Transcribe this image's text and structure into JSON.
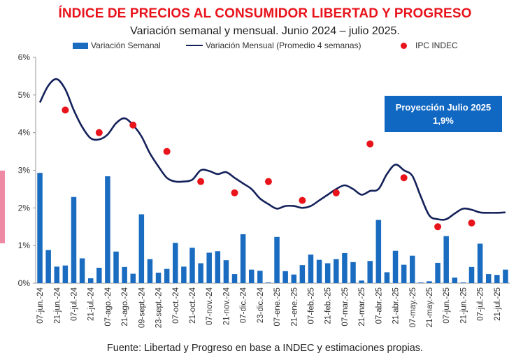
{
  "title": "ÍNDICE DE PRECIOS AL CONSUMIDOR LIBERTAD Y PROGRESO",
  "subtitle": "Variación semanal y mensual. Junio 2024 – julio 2025.",
  "source": "Fuente: Libertad y Progreso en base a INDEC y estimaciones propias.",
  "projection": {
    "line1": "Proyección Julio 2025",
    "line2": "1,9%"
  },
  "colors": {
    "bars": "#1a6cc0",
    "line": "#14215a",
    "ipc": "#e8131b",
    "title": "#e8131b",
    "axis": "#9a9a9a",
    "projection_box": "#1168c2",
    "side_tab": "#ef8aa5"
  },
  "chart_data": {
    "type": "bar+line+scatter",
    "title": "ÍNDICE DE PRECIOS AL CONSUMIDOR LIBERTAD Y PROGRESO",
    "subtitle": "Variación semanal y mensual. Junio 2024 – julio 2025.",
    "ylim": [
      0,
      6
    ],
    "y_ticks": [
      "0%",
      "1%",
      "2%",
      "3%",
      "4%",
      "5%",
      "6%"
    ],
    "y_tick_values": [
      0,
      1,
      2,
      3,
      4,
      5,
      6
    ],
    "grid": false,
    "legend_position": "top",
    "x_tick_labels": [
      "07-jun.-24",
      "21-jun.-24",
      "07-jul.-24",
      "21-jul.-24",
      "07-ago.-24",
      "21-ago.-24",
      "09-sept.-24",
      "23-sept.-24",
      "07-oct.-24",
      "21-oct.-24",
      "07-nov.-24",
      "21-nov.-24",
      "07-dic.-24",
      "23-dic.-24",
      "07-ene.-25",
      "21-ene.-25",
      "07-feb.-25",
      "21-feb.-25",
      "07-mar.-25",
      "21-mar.-25",
      "07-abr.-25",
      "21-abr.-25",
      "07-may.-25",
      "21-may.-25",
      "07-jun.-25",
      "21-jun.-25",
      "07-jul.-25",
      "21-jul.-25"
    ],
    "series": [
      {
        "name": "Variación Semanal",
        "type": "bar",
        "values": [
          2.93,
          0.88,
          0.44,
          0.47,
          2.29,
          0.66,
          0.13,
          0.41,
          2.84,
          0.84,
          0.43,
          0.25,
          1.83,
          0.64,
          0.28,
          0.38,
          1.07,
          0.44,
          0.94,
          0.53,
          0.81,
          0.85,
          0.61,
          0.24,
          1.3,
          0.36,
          0.33,
          0.02,
          1.23,
          0.32,
          0.23,
          0.48,
          0.76,
          0.62,
          0.53,
          0.64,
          0.8,
          0.56,
          0.07,
          0.59,
          1.68,
          0.29,
          0.86,
          0.49,
          0.73,
          0.02,
          0.05,
          0.54,
          1.25,
          0.15,
          0.02,
          0.43,
          1.05,
          0.24,
          0.22,
          0.36
        ]
      },
      {
        "name": "Variación Mensual (Promedio 4 semanas)",
        "type": "line",
        "values": [
          4.8,
          5.25,
          5.42,
          5.15,
          4.6,
          4.15,
          3.85,
          3.82,
          3.95,
          4.25,
          4.38,
          4.2,
          3.9,
          3.45,
          3.1,
          2.8,
          2.7,
          2.7,
          2.75,
          3.0,
          2.98,
          2.9,
          2.95,
          2.8,
          2.65,
          2.5,
          2.25,
          2.1,
          1.98,
          2.05,
          2.05,
          2.0,
          2.05,
          2.2,
          2.35,
          2.5,
          2.6,
          2.5,
          2.35,
          2.45,
          2.5,
          2.9,
          3.15,
          3.0,
          2.85,
          2.3,
          1.8,
          1.7,
          1.7,
          1.85,
          1.98,
          1.95,
          1.88,
          1.87,
          1.87,
          1.88
        ]
      },
      {
        "name": "IPC INDEC",
        "type": "scatter",
        "x_index": [
          3,
          7,
          11,
          15,
          19,
          23,
          27,
          31,
          35,
          39,
          43,
          47,
          51
        ],
        "values": [
          4.6,
          4.0,
          4.2,
          3.5,
          2.7,
          2.4,
          2.7,
          2.2,
          2.4,
          3.7,
          2.8,
          1.5,
          1.6
        ]
      }
    ]
  }
}
